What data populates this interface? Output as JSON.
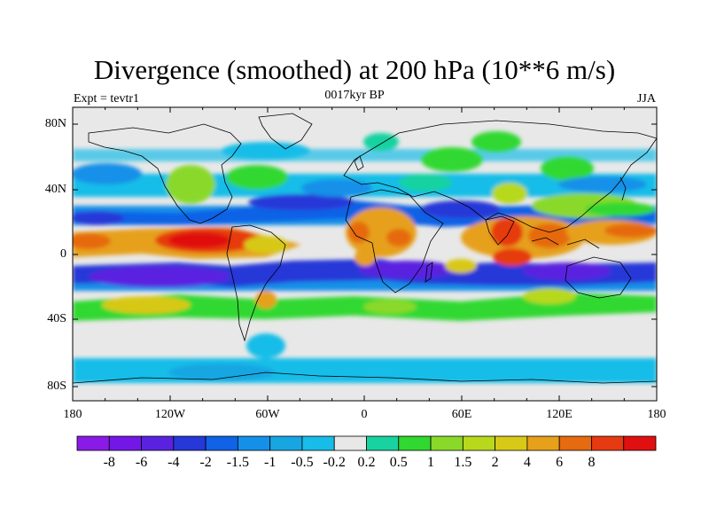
{
  "title": "Divergence (smoothed) at 200 hPa (10**6 m/s)",
  "subtitle_left": "Expt = tevtr1",
  "subtitle_center": "0017kyr BP",
  "subtitle_right": "JJA",
  "lat_labels": [
    "80N",
    "40N",
    "0",
    "40S",
    "80S"
  ],
  "lon_labels": [
    "180",
    "120W",
    "60W",
    "0",
    "60E",
    "120E",
    "180"
  ],
  "colorbar": {
    "colors": [
      "#8a1ae6",
      "#7317e6",
      "#5a22e0",
      "#2638d8",
      "#1062e6",
      "#1590e8",
      "#17a6e2",
      "#17bde8",
      "#e8e8e8",
      "#18d2a0",
      "#30d830",
      "#8ad92a",
      "#b8d81c",
      "#d8c818",
      "#e6a01a",
      "#e66a10",
      "#e63a10",
      "#e01010"
    ],
    "labels": [
      "-8",
      "-6",
      "-4",
      "-2",
      "-1.5",
      "-1",
      "-0.5",
      "-0.2",
      "0.2",
      "0.5",
      "1",
      "1.5",
      "2",
      "4",
      "6",
      "8"
    ]
  },
  "colors": {
    "background": "#e8e8e8",
    "coast": "#000000"
  }
}
